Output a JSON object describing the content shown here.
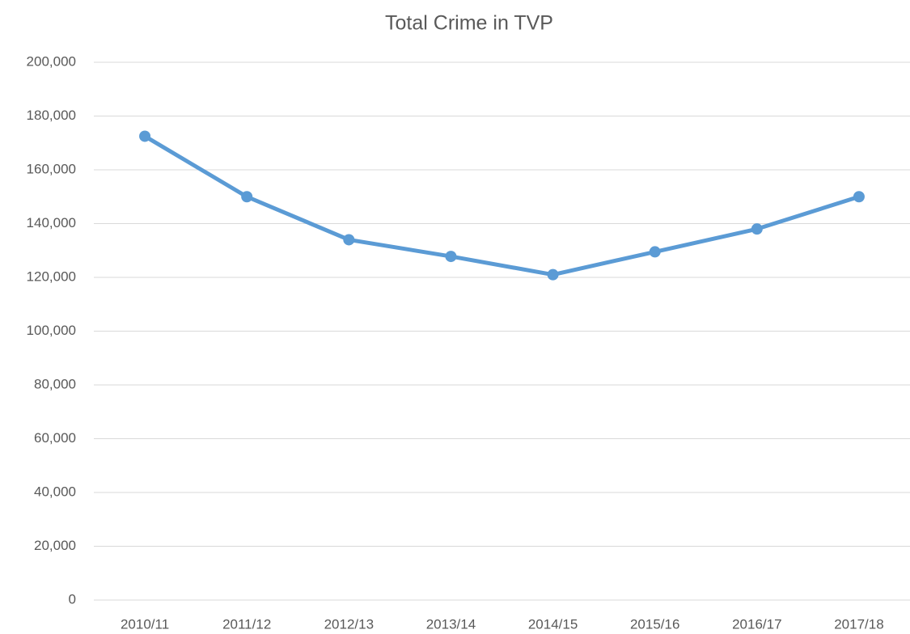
{
  "chart_data": {
    "type": "line",
    "title": "Total Crime in TVP",
    "categories": [
      "2010/11",
      "2011/12",
      "2012/13",
      "2013/14",
      "2014/15",
      "2015/16",
      "2016/17",
      "2017/18"
    ],
    "series": [
      {
        "name": "Total Crime",
        "color": "#5b9bd5",
        "values": [
          172500,
          150000,
          134000,
          127800,
          121000,
          129500,
          138000,
          150000
        ]
      }
    ],
    "ylim": [
      0,
      200000
    ],
    "yticks": [
      0,
      {
        "value": 20000,
        "label": "20,000"
      },
      {
        "value": 40000,
        "label": "40,000"
      },
      {
        "value": 60000,
        "label": "60,000"
      },
      {
        "value": 80000,
        "label": "80,000"
      },
      {
        "value": 100000,
        "label": "100,000"
      },
      {
        "value": 120000,
        "label": "120,000"
      },
      {
        "value": 140000,
        "label": "140,000"
      },
      {
        "value": 160000,
        "label": "160,000"
      },
      {
        "value": 180000,
        "label": "180,000"
      },
      {
        "value": 200000,
        "label": "200,000"
      }
    ],
    "grid": true,
    "legend": false
  }
}
